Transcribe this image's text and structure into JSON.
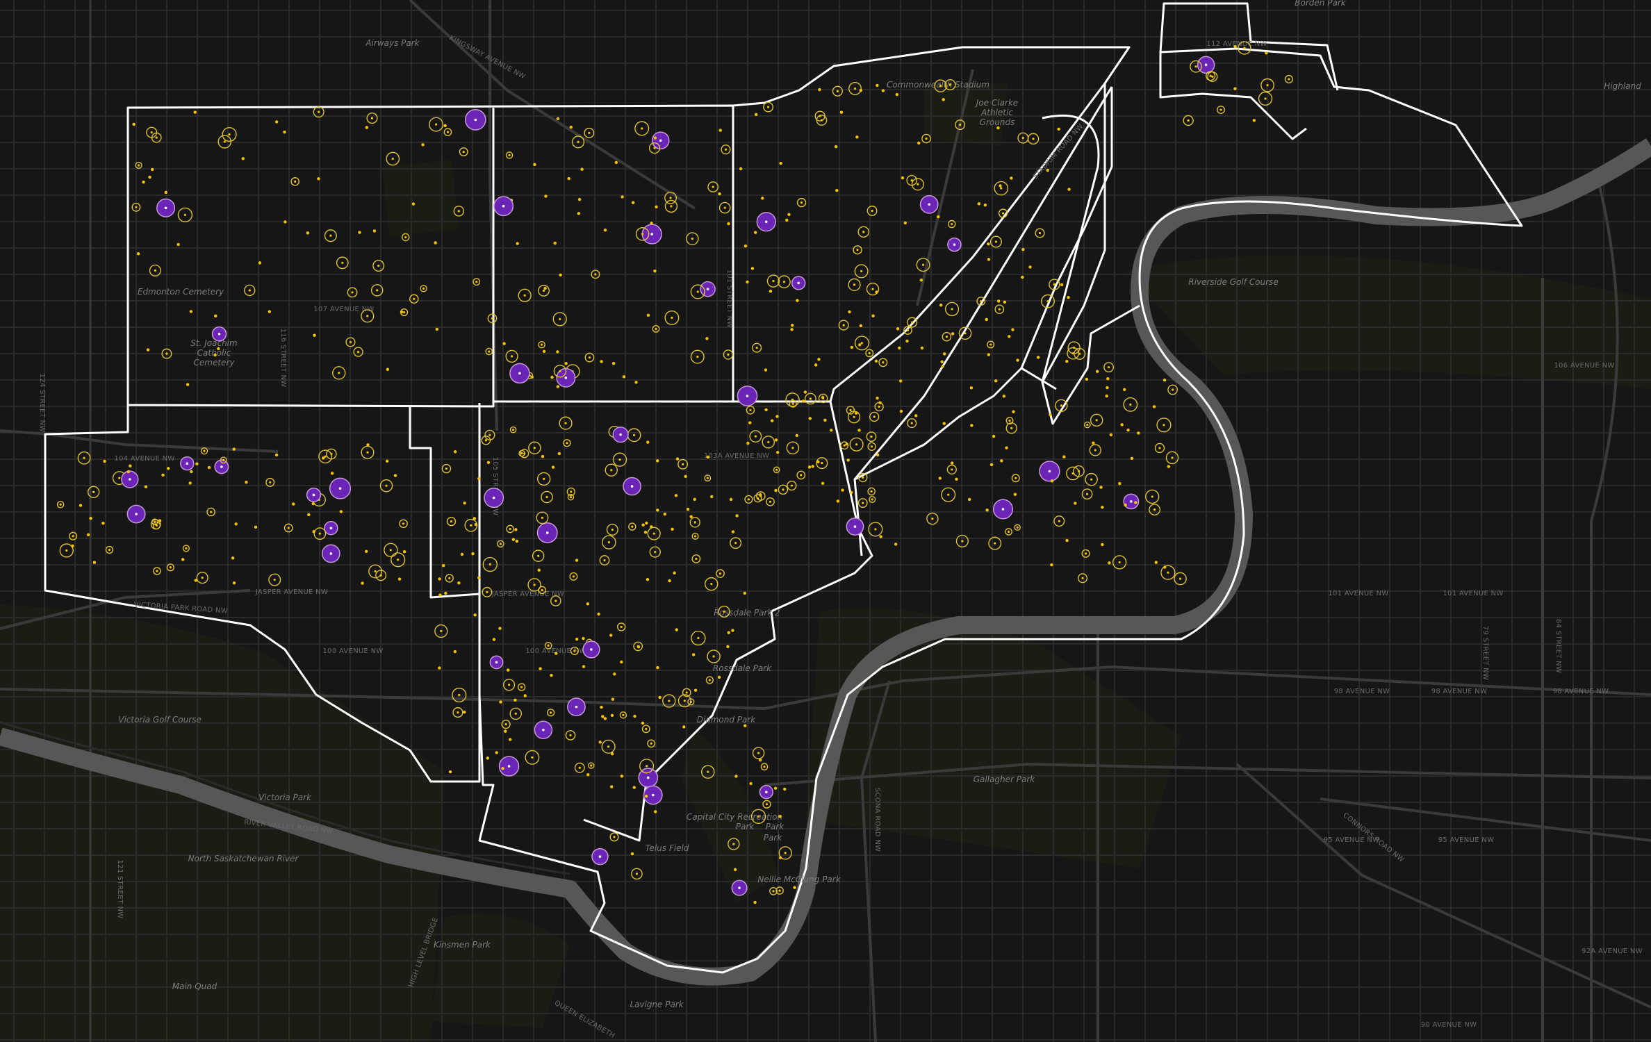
{
  "colors": {
    "background": "#161616",
    "block": "#1d1d1d",
    "street": "#2c2c2c",
    "arterial": "#383838",
    "river": "#5b5b5b",
    "riverBank": "#262626",
    "greenspace": "#1a1d14",
    "boundary": "#ffffff",
    "pointSmall": "#f7c300",
    "pointRing": "#e0c230",
    "pointLarge": "#6b25b6",
    "pointLargeRing": "#c79ad6"
  },
  "legend_semantics": {
    "small": "yellow circle (small value)",
    "large": "purple circle (large value)"
  },
  "place_labels": [
    {
      "id": "airways-park",
      "text": "Airways Park"
    },
    {
      "id": "borden-park",
      "text": "Borden Park"
    },
    {
      "id": "highlands",
      "text": "Highland"
    },
    {
      "id": "commonwealth-stadium",
      "text": "Commonwealth Stadium"
    },
    {
      "id": "joe-clarke-1",
      "text": "Joe Clarke"
    },
    {
      "id": "joe-clarke-2",
      "text": "Athletic"
    },
    {
      "id": "joe-clarke-3",
      "text": "Grounds"
    },
    {
      "id": "edmonton-cemetery",
      "text": "Edmonton Cemetery"
    },
    {
      "id": "st-joachim-1",
      "text": "St. Joachim"
    },
    {
      "id": "st-joachim-2",
      "text": "Catholic"
    },
    {
      "id": "st-joachim-3",
      "text": "Cemetery"
    },
    {
      "id": "riverside-golf",
      "text": "Riverside Golf Course"
    },
    {
      "id": "rossdale-park-2",
      "text": "Rossdale Park 2"
    },
    {
      "id": "rossdale-park",
      "text": "Rossdale Park"
    },
    {
      "id": "diamond-park",
      "text": "Diamond Park"
    },
    {
      "id": "victoria-golf",
      "text": "Victoria Golf Course"
    },
    {
      "id": "victoria-park",
      "text": "Victoria Park"
    },
    {
      "id": "gallagher-park",
      "text": "Gallagher Park"
    },
    {
      "id": "capital-city-1",
      "text": "Capital City Recreation"
    },
    {
      "id": "capital-city-2",
      "text": "Park"
    },
    {
      "id": "capital-city-3",
      "text": "Park"
    },
    {
      "id": "capital-city-4",
      "text": "Park"
    },
    {
      "id": "telus-field",
      "text": "Telus Field"
    },
    {
      "id": "mcclung-park",
      "text": "Nellie McClung Park"
    },
    {
      "id": "kinsmen-park",
      "text": "Kinsmen Park"
    },
    {
      "id": "main-quad",
      "text": "Main Quad"
    },
    {
      "id": "lavigne-park",
      "text": "Lavigne Park"
    },
    {
      "id": "north-sask",
      "text": "North Saskatchewan River"
    }
  ],
  "street_labels": [
    {
      "id": "112-ave",
      "text": "112 AVENUE NW"
    },
    {
      "id": "107-ave",
      "text": "107 AVENUE NW"
    },
    {
      "id": "106-ave",
      "text": "106 AVENUE NW"
    },
    {
      "id": "104-ave",
      "text": "104 AVENUE NW"
    },
    {
      "id": "103-ave",
      "text": "103A AVENUE NW"
    },
    {
      "id": "101-ave",
      "text": "101 AVENUE NW"
    },
    {
      "id": "101-ave-2",
      "text": "101 AVENUE NW"
    },
    {
      "id": "100-ave",
      "text": "100 AVENUE NW"
    },
    {
      "id": "100-ave-2",
      "text": "100 AVENUE NW"
    },
    {
      "id": "98-ave",
      "text": "98 AVENUE NW"
    },
    {
      "id": "98-ave-2",
      "text": "98 AVENUE NW"
    },
    {
      "id": "98-ave-3",
      "text": "98 AVENUE NW"
    },
    {
      "id": "95-ave",
      "text": "95 AVENUE NW"
    },
    {
      "id": "95-ave-2",
      "text": "95 AVENUE NW"
    },
    {
      "id": "92a-ave",
      "text": "92A AVENUE NW"
    },
    {
      "id": "90-ave",
      "text": "90 AVENUE NW"
    },
    {
      "id": "jasper-ave",
      "text": "JASPER AVENUE NW"
    },
    {
      "id": "jasper-ave-2",
      "text": "JASPER AVENUE NW"
    },
    {
      "id": "kingsway",
      "text": "KINGSWAY AVENUE NW"
    },
    {
      "id": "stadium-rd",
      "text": "STADIUM ROAD NW"
    },
    {
      "id": "victoria-park-rd",
      "text": "VICTORIA PARK ROAD NW"
    },
    {
      "id": "river-valley-rd",
      "text": "RIVER VALLEY ROAD NW"
    },
    {
      "id": "connors-rd",
      "text": "CONNORS ROAD NW"
    },
    {
      "id": "122-st",
      "text": "124 STREET NW"
    },
    {
      "id": "121-st",
      "text": "121 STREET NW"
    },
    {
      "id": "116-st",
      "text": "116 STREET NW"
    },
    {
      "id": "105-st",
      "text": "105 STREET NW"
    },
    {
      "id": "101-st",
      "text": "101 STREET NW"
    },
    {
      "id": "84-st",
      "text": "84 STREET NW"
    },
    {
      "id": "79-st",
      "text": "79 STREET NW"
    },
    {
      "id": "wellington",
      "text": "SCONA ROAD NW"
    },
    {
      "id": "queen-elizabeth",
      "text": "QUEEN ELIZABETH"
    },
    {
      "id": "high-level",
      "text": "HIGH LEVEL BRIDGE"
    }
  ]
}
